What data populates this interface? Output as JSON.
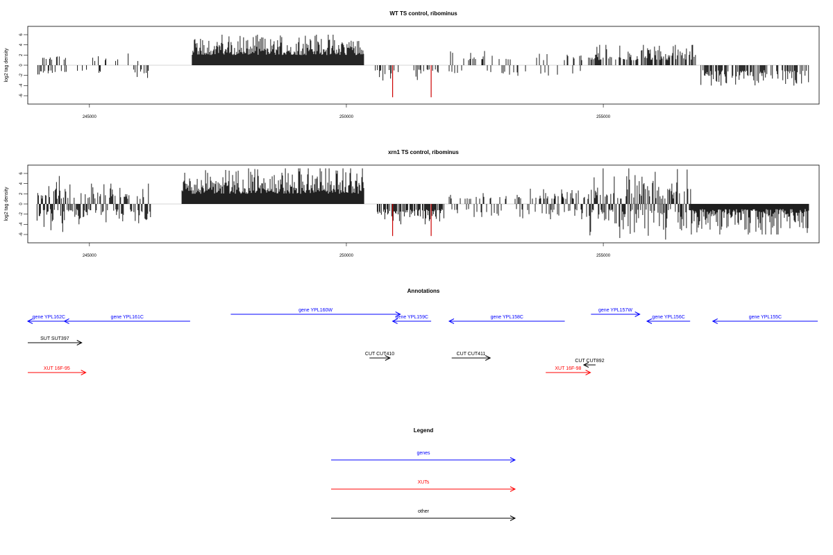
{
  "chart_data": [
    {
      "type": "bar",
      "title": "WT TS control, ribominus",
      "xlabel": "",
      "ylabel": "log2 tag density",
      "xlim": [
        243800,
        259200
      ],
      "ylim": [
        -6,
        6
      ],
      "x_ticks": [
        245000,
        250000,
        255000
      ],
      "y_ticks": [
        -6,
        -4,
        -2,
        0,
        2,
        4,
        6
      ],
      "grid": false,
      "colors": {
        "bars": "#000000",
        "highlight": "#cc0000"
      },
      "segments": [
        {
          "from": 243980,
          "to": 244550,
          "density": 0.55,
          "min": 1.0,
          "max": 2.0,
          "sign": "mixed"
        },
        {
          "from": 244700,
          "to": 246300,
          "density": 0.28,
          "min": 0.8,
          "max": 2.5,
          "sign": "mixed"
        },
        {
          "from": 247000,
          "to": 250350,
          "density": 1.0,
          "min": 2.0,
          "max": 6.0,
          "sign": "pos"
        },
        {
          "from": 250550,
          "to": 251050,
          "density": 0.35,
          "min": 0.8,
          "max": 3.0,
          "sign": "neg"
        },
        {
          "from": 251300,
          "to": 251800,
          "density": 0.35,
          "min": 0.8,
          "max": 3.0,
          "sign": "neg"
        },
        {
          "from": 252000,
          "to": 254600,
          "density": 0.28,
          "min": 1.0,
          "max": 2.8,
          "sign": "mixed"
        },
        {
          "from": 254700,
          "to": 256800,
          "density": 0.6,
          "min": 1.0,
          "max": 4.0,
          "sign": "pos"
        },
        {
          "from": 256900,
          "to": 259000,
          "density": 0.55,
          "min": 1.0,
          "max": 4.0,
          "sign": "neg"
        }
      ],
      "spikes": [
        {
          "x": 250900,
          "value": -6.3,
          "color": "#cc0000"
        },
        {
          "x": 251650,
          "value": -6.3,
          "color": "#cc0000"
        }
      ]
    },
    {
      "type": "bar",
      "title": "xrn1 TS control, ribominus",
      "xlabel": "",
      "ylabel": "log2 tag density",
      "xlim": [
        243800,
        259200
      ],
      "ylim": [
        -6,
        6
      ],
      "x_ticks": [
        245000,
        250000,
        255000
      ],
      "y_ticks": [
        -6,
        -4,
        -2,
        0,
        2,
        4,
        6
      ],
      "grid": false,
      "colors": {
        "bars": "#000000",
        "highlight": "#cc0000"
      },
      "segments": [
        {
          "from": 243980,
          "to": 244500,
          "density": 1.0,
          "min": 1.0,
          "max": 5.5,
          "sign": "mixed"
        },
        {
          "from": 244500,
          "to": 246200,
          "density": 0.85,
          "min": 1.0,
          "max": 4.0,
          "sign": "mixed"
        },
        {
          "from": 246800,
          "to": 250350,
          "density": 1.0,
          "min": 2.0,
          "max": 7.0,
          "sign": "pos"
        },
        {
          "from": 250600,
          "to": 251900,
          "density": 0.75,
          "min": 1.0,
          "max": 4.0,
          "sign": "neg"
        },
        {
          "from": 252000,
          "to": 254700,
          "density": 0.4,
          "min": 1.0,
          "max": 3.0,
          "sign": "mixed"
        },
        {
          "from": 254000,
          "to": 254600,
          "density": 0.3,
          "min": 1.0,
          "max": 3.5,
          "sign": "pos"
        },
        {
          "from": 254700,
          "to": 256700,
          "density": 0.9,
          "min": 1.0,
          "max": 7.0,
          "sign": "mixed"
        },
        {
          "from": 256700,
          "to": 259000,
          "density": 1.0,
          "min": 1.0,
          "max": 6.0,
          "sign": "neg"
        }
      ],
      "spikes": [
        {
          "x": 250900,
          "value": -6.3,
          "color": "#cc0000"
        },
        {
          "x": 251650,
          "value": -6.3,
          "color": "#cc0000"
        }
      ]
    }
  ],
  "annotations": {
    "title": "Annotations",
    "features": [
      {
        "label": "gene YPL162C",
        "color": "#0000ff",
        "start": 243800,
        "end": 244620,
        "strand": "-"
      },
      {
        "label": "gene YPL161C",
        "color": "#0000ff",
        "start": 244510,
        "end": 246960,
        "strand": "-"
      },
      {
        "label": "gene YPL160W",
        "color": "#0000ff",
        "start": 247750,
        "end": 251050,
        "strand": "+"
      },
      {
        "label": "gene YPL159C",
        "color": "#0000ff",
        "start": 250900,
        "end": 251650,
        "strand": "-"
      },
      {
        "label": "gene YPL158C",
        "color": "#0000ff",
        "start": 252000,
        "end": 254250,
        "strand": "-"
      },
      {
        "label": "gene YPL157W",
        "color": "#0000ff",
        "start": 254760,
        "end": 255710,
        "strand": "+"
      },
      {
        "label": "gene YPL156C",
        "color": "#0000ff",
        "start": 255850,
        "end": 256690,
        "strand": "-"
      },
      {
        "label": "gene YPL155C",
        "color": "#0000ff",
        "start": 257130,
        "end": 259200,
        "strand": "-"
      },
      {
        "label": "SUT SUT397",
        "color": "#000000",
        "start": 243800,
        "end": 244850,
        "strand": "+"
      },
      {
        "label": "CUT CUT410",
        "color": "#000000",
        "start": 250450,
        "end": 250850,
        "strand": "+"
      },
      {
        "label": "CUT CUT411",
        "color": "#000000",
        "start": 252050,
        "end": 252800,
        "strand": "+"
      },
      {
        "label": "CUT CUT892",
        "color": "#000000",
        "start": 254620,
        "end": 254850,
        "strand": "-"
      },
      {
        "label": "XUT 16F-95",
        "color": "#ff0000",
        "start": 243800,
        "end": 244930,
        "strand": "+"
      },
      {
        "label": "XUT 16F-98",
        "color": "#ff0000",
        "start": 253880,
        "end": 254750,
        "strand": "+"
      }
    ]
  },
  "legend": {
    "title": "Legend",
    "items": [
      {
        "label": "genes",
        "color": "#0000ff"
      },
      {
        "label": "XUTs",
        "color": "#ff0000"
      },
      {
        "label": "other",
        "color": "#000000"
      }
    ]
  }
}
